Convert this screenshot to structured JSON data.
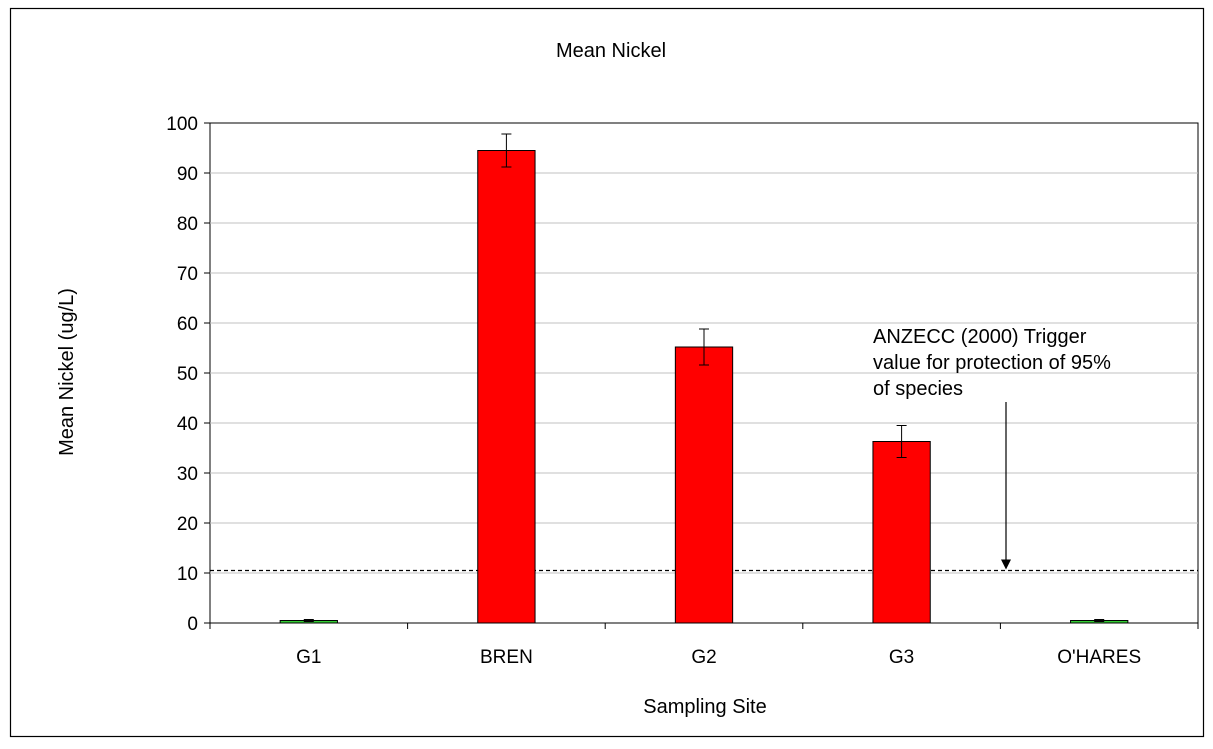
{
  "chart_data": {
    "type": "bar",
    "title": "Mean Nickel",
    "xlabel": "Sampling Site",
    "ylabel": "Mean Nickel (ug/L)",
    "categories": [
      "G1",
      "BREN",
      "G2",
      "G3",
      "O'HARES"
    ],
    "values": [
      0.5,
      94.5,
      55.2,
      36.3,
      0.5
    ],
    "errors": [
      0.2,
      3.3,
      3.6,
      3.2,
      0.2
    ],
    "bar_colors": [
      "#33cc33",
      "#ff0000",
      "#ff0000",
      "#ff0000",
      "#33cc33"
    ],
    "ylim": [
      0,
      100
    ],
    "yticks": [
      0,
      10,
      20,
      30,
      40,
      50,
      60,
      70,
      80,
      90,
      100
    ],
    "grid": true,
    "reference_line": {
      "value": 10.5,
      "style": "dashed",
      "annotation": [
        "ANZECC (2000) Trigger",
        "value for protection of 95%",
        "of species"
      ]
    }
  }
}
